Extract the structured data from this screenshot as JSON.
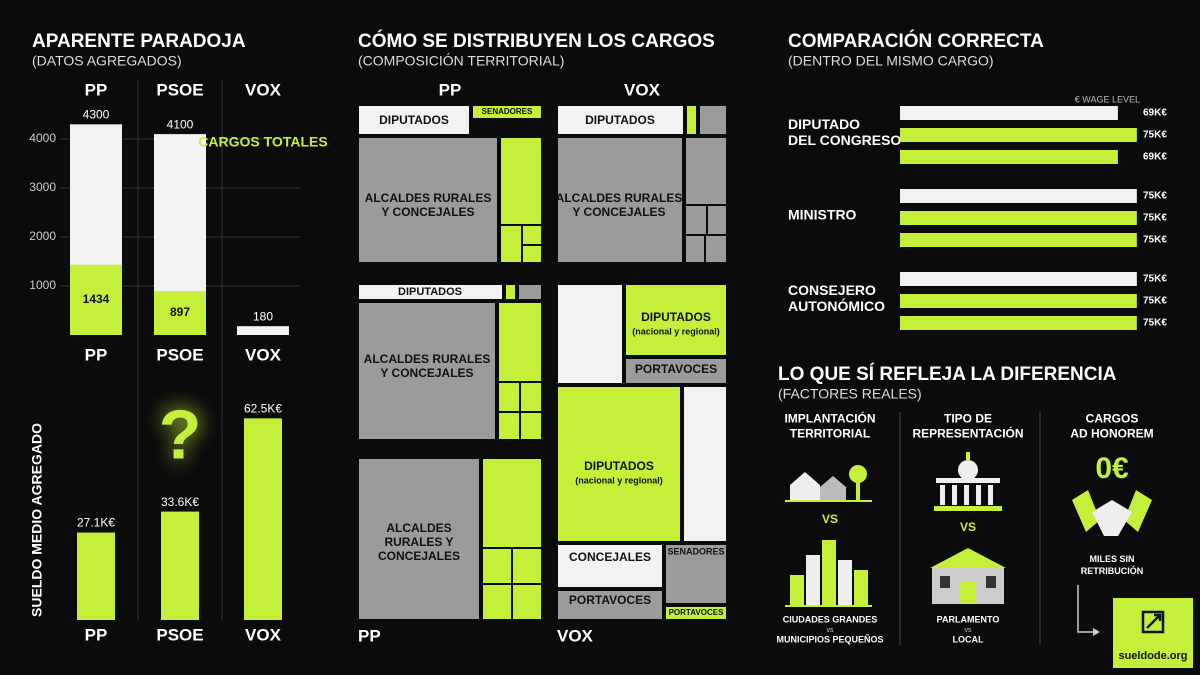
{
  "chart_data": [
    {
      "type": "bar",
      "title": "APARENTE PARADOJA",
      "subtitle": "(DATOS AGREGADOS)",
      "categories": [
        "PP",
        "PSOE",
        "VOX"
      ],
      "series": [
        {
          "color": "#f2f2f2",
          "values": [
            4300,
            4100,
            180
          ]
        },
        {
          "color": "#c4f03a",
          "values": [
            1434,
            897,
            null
          ]
        }
      ],
      "annotation": "CARGOS TOTALES",
      "ylim": [
        0,
        4500
      ],
      "yticks": [
        1000,
        2000,
        3000,
        4000
      ],
      "grid": true
    },
    {
      "type": "bar",
      "ylabel": "SUELDO MEDIO AGREGADO",
      "categories": [
        "PP",
        "PSOE",
        "VOX"
      ],
      "values": [
        27.1,
        33.6,
        62.5
      ],
      "value_labels": [
        "27.1K€",
        "33.6K€",
        "62.5K€"
      ],
      "color": "#c4f03a",
      "annotation": "?",
      "ylim": [
        0,
        75
      ]
    },
    {
      "type": "hbar",
      "title": "COMPARACIÓN CORRECTA",
      "subtitle": "(DENTRO DEL MISMO CARGO)",
      "xlabel": "€ WAGE LEVEL",
      "categories": [
        "DIPUTADO\nDEL CONGRESO",
        "MINISTRO",
        "CONSEJERO\nAUTONÓMICO"
      ],
      "series": [
        {
          "color": "#f2f2f2",
          "values": [
            69,
            75,
            75
          ],
          "value_labels": [
            "69K€",
            "75K€",
            "75K€"
          ]
        },
        {
          "color": "#c4f03a",
          "values": [
            75,
            75,
            75
          ],
          "value_labels": [
            "75K€",
            "75K€",
            "75K€"
          ]
        },
        {
          "color": "#c4f03a",
          "values": [
            69,
            75,
            75
          ],
          "value_labels": [
            "69K€",
            "75K€",
            "75K€"
          ]
        }
      ],
      "xlim": [
        0,
        76
      ]
    }
  ],
  "treemaps": {
    "title": "CÓMO SE DISTRIBUYEN LOS CARGOS",
    "subtitle": "(COMPOSICIÓN TERRITORIAL)",
    "headers": [
      "PP",
      "VOX"
    ],
    "footers": [
      "PP",
      "VOX"
    ],
    "panels": [
      {
        "labels": [
          "DIPUTADOS",
          "SENADORES",
          "ALCALDES RURALES\nY CONCEJALES"
        ]
      },
      {
        "labels": [
          "DIPUTADOS",
          "ALCALDES RURALES\nY CONCEJALES"
        ]
      },
      {
        "labels": [
          "DIPUTADOS",
          "ALCALDES RURALES\nY CONCEJALES"
        ]
      },
      {
        "labels": [
          "DIPUTADOS",
          "(nacional y regional)",
          "PORTAVOCES",
          "DIPUTADOS",
          "(nacional y regional)",
          "CONCEJALES",
          "SENADORES",
          "PORTAVOCES",
          "PORTAVOCES"
        ]
      },
      {
        "labels": [
          "ALCALDES\nRURALES Y\nCONCEJALES"
        ]
      }
    ]
  },
  "factors": {
    "title": "LO QUE SÍ REFLEJA LA DIFERENCIA",
    "subtitle": "(FACTORES REALES)",
    "columns": [
      {
        "heading": "IMPLANTACIÓN\nTERRITORIAL",
        "vs": "VS",
        "caption": "CIUDADES GRANDES",
        "caption_vs": "vs",
        "caption_2": "MUNICIPIOS PEQUEÑOS"
      },
      {
        "heading": "TIPO DE\nREPRESENTACIÓN",
        "vs": "VS",
        "caption": "PARLAMENTO",
        "caption_vs": "vs",
        "caption_2": "LOCAL"
      },
      {
        "heading": "CARGOS\nAD HONOREM",
        "amount": "0€",
        "caption": "MILES SIN\nRETRIBUCIÓN"
      }
    ]
  },
  "brand": "sueldode.org"
}
